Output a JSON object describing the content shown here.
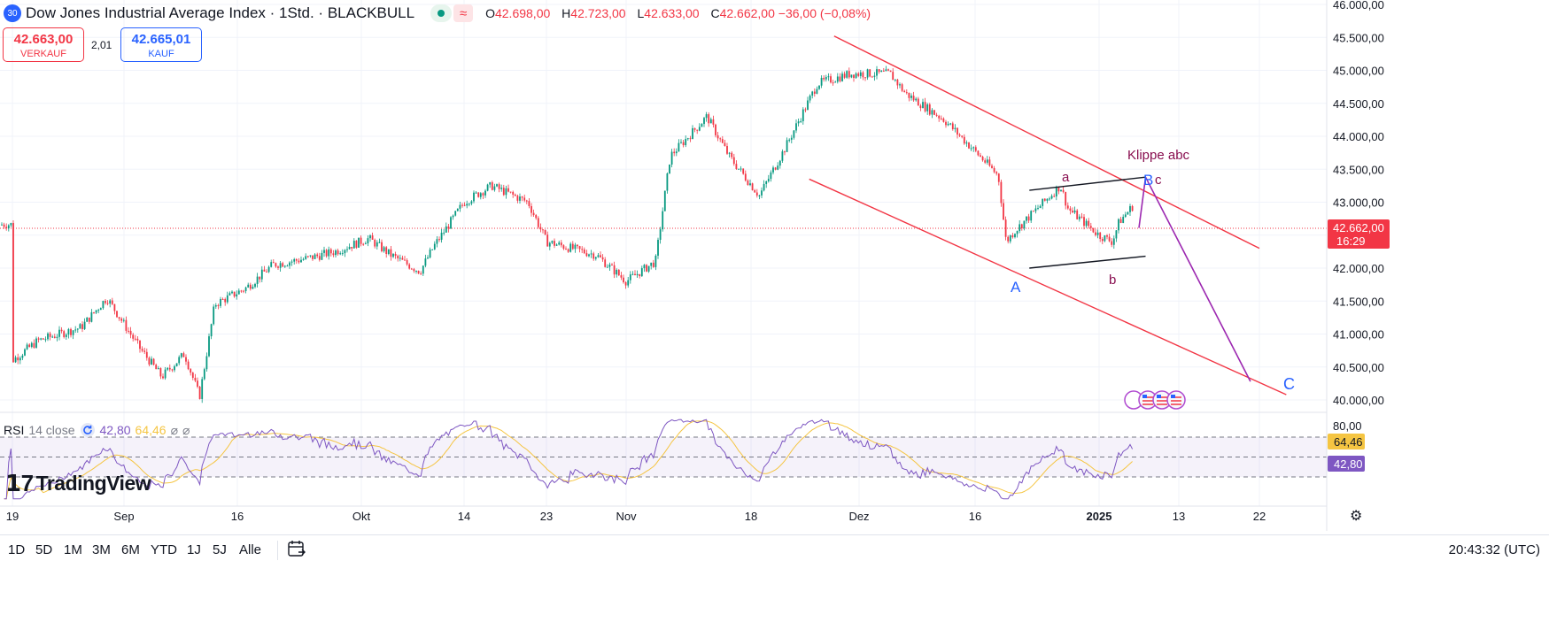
{
  "header": {
    "badge": "30",
    "title": "Dow Jones Industrial Average Index · 1Std. · BLACKBULL",
    "indicator_symbol": "≈",
    "ohlc": [
      {
        "key": "O",
        "value": "42.698,00"
      },
      {
        "key": "H",
        "value": "42.723,00"
      },
      {
        "key": "L",
        "value": "42.633,00"
      },
      {
        "key": "C",
        "value": "42.662,00 −36,00 (−0,08%)"
      }
    ]
  },
  "trade": {
    "sell_price": "42.663,00",
    "sell_label": "VERKAUF",
    "spread": "2,01",
    "buy_price": "42.665,01",
    "buy_label": "KAUF"
  },
  "rsi": {
    "label": "RSI",
    "params": "14 close",
    "value": "42,80",
    "ma_value": "64,46",
    "icon_names": [
      "refresh-icon",
      "hidden-icon",
      "hidden-icon"
    ],
    "level_label": "80,00"
  },
  "logo": "TradingView",
  "bottom_bar": {
    "periods": [
      "1D",
      "5D",
      "1M",
      "3M",
      "6M",
      "YTD",
      "1J",
      "5J",
      "Alle"
    ],
    "clock": "20:43:32 (UTC)"
  },
  "colors": {
    "up": "#089981",
    "down": "#f23645",
    "channel": "#f23645",
    "projection": "#9c27b0",
    "rsi_line": "#7e57c2",
    "rsi_ma": "#f5c542",
    "wave_major": "#2962ff",
    "wave_minor": "#880e4f"
  },
  "chart_data": {
    "type": "candlestick",
    "instrument": "Dow Jones Industrial Average Index",
    "timeframe": "1Std.",
    "x_tick_labels": [
      "19",
      "Sep",
      "16",
      "Okt",
      "14",
      "23",
      "Nov",
      "18",
      "Dez",
      "16",
      "2025",
      "13",
      "22"
    ],
    "y_tick_labels": [
      "46.000,00",
      "45.500,00",
      "45.000,00",
      "44.500,00",
      "44.000,00",
      "43.500,00",
      "43.000,00",
      "42.500,00",
      "42.000,00",
      "41.500,00",
      "41.000,00",
      "40.500,00",
      "40.000,00"
    ],
    "ylim": [
      39950,
      46000
    ],
    "last_price": 42662,
    "last_price_label": "42.662,00",
    "countdown": "16:29",
    "close_path": [
      {
        "x": "Aug 19",
        "y": 40600
      },
      {
        "x": "Aug 22",
        "y": 40900
      },
      {
        "x": "Aug 27",
        "y": 41100
      },
      {
        "x": "Aug 30",
        "y": 41550
      },
      {
        "x": "Sep 3",
        "y": 40800
      },
      {
        "x": "Sep 6",
        "y": 40350
      },
      {
        "x": "Sep 9",
        "y": 40700
      },
      {
        "x": "Sep 11",
        "y": 40050
      },
      {
        "x": "Sep 13",
        "y": 41450
      },
      {
        "x": "Sep 17",
        "y": 41700
      },
      {
        "x": "Sep 20",
        "y": 42050
      },
      {
        "x": "Sep 24",
        "y": 42150
      },
      {
        "x": "Sep 27",
        "y": 42250
      },
      {
        "x": "Okt 1",
        "y": 42450
      },
      {
        "x": "Okt 4",
        "y": 42200
      },
      {
        "x": "Okt 8",
        "y": 41950
      },
      {
        "x": "Okt 10",
        "y": 42350
      },
      {
        "x": "Okt 14",
        "y": 43000
      },
      {
        "x": "Okt 17",
        "y": 43250
      },
      {
        "x": "Okt 21",
        "y": 43000
      },
      {
        "x": "Okt 23",
        "y": 42400
      },
      {
        "x": "Okt 28",
        "y": 42200
      },
      {
        "x": "Okt 31",
        "y": 41800
      },
      {
        "x": "Nov 4",
        "y": 42100
      },
      {
        "x": "Nov 6",
        "y": 43700
      },
      {
        "x": "Nov 11",
        "y": 44300
      },
      {
        "x": "Nov 14",
        "y": 43700
      },
      {
        "x": "Nov 18",
        "y": 43100
      },
      {
        "x": "Nov 21",
        "y": 43800
      },
      {
        "x": "Nov 25",
        "y": 44800
      },
      {
        "x": "Nov 29",
        "y": 44950
      },
      {
        "x": "Dez 4",
        "y": 44950
      },
      {
        "x": "Dez 6",
        "y": 44650
      },
      {
        "x": "Dez 11",
        "y": 44250
      },
      {
        "x": "Dez 16",
        "y": 43650
      },
      {
        "x": "Dez 18",
        "y": 43400
      },
      {
        "x": "Dez 19",
        "y": 42400
      },
      {
        "x": "Dez 20",
        "y": 42550
      },
      {
        "x": "Dez 23",
        "y": 42900
      },
      {
        "x": "Dez 26",
        "y": 43250
      },
      {
        "x": "Dez 27",
        "y": 42900
      },
      {
        "x": "Dez 31",
        "y": 42500
      },
      {
        "x": "Jan 2",
        "y": 42400
      },
      {
        "x": "Jan 3",
        "y": 42700
      },
      {
        "x": "Jan 6",
        "y": 43050
      },
      {
        "x": "Jan 6",
        "y": 42662
      }
    ],
    "drawings": {
      "channel_upper": [
        {
          "x": "Nov 27",
          "y": 45520
        },
        {
          "x": "Jan 21",
          "y": 42300
        }
      ],
      "channel_lower": [
        {
          "x": "Nov 24",
          "y": 43350
        },
        {
          "x": "Jan 24",
          "y": 40080
        }
      ],
      "inner_upper": [
        {
          "x": "Dez 22",
          "y": 43180
        },
        {
          "x": "Jan 7",
          "y": 43380
        }
      ],
      "inner_lower": [
        {
          "x": "Dez 22",
          "y": 42000
        },
        {
          "x": "Jan 7",
          "y": 42180
        }
      ],
      "projection": [
        {
          "x": "Jan 6",
          "y": 42610
        },
        {
          "x": "Jan 7",
          "y": 43380
        },
        {
          "x": "Jan 20",
          "y": 40280
        }
      ],
      "labels": [
        "A",
        "B",
        "C",
        "a",
        "b",
        "c",
        "Klippe abc"
      ]
    },
    "rsi": {
      "period": 14,
      "levels": [
        70,
        50,
        30
      ],
      "level_labels": [
        "80,00"
      ],
      "value": 42.8,
      "value_label": "42,80",
      "ma_value": 64.46,
      "ma_value_label": "64,46"
    }
  }
}
